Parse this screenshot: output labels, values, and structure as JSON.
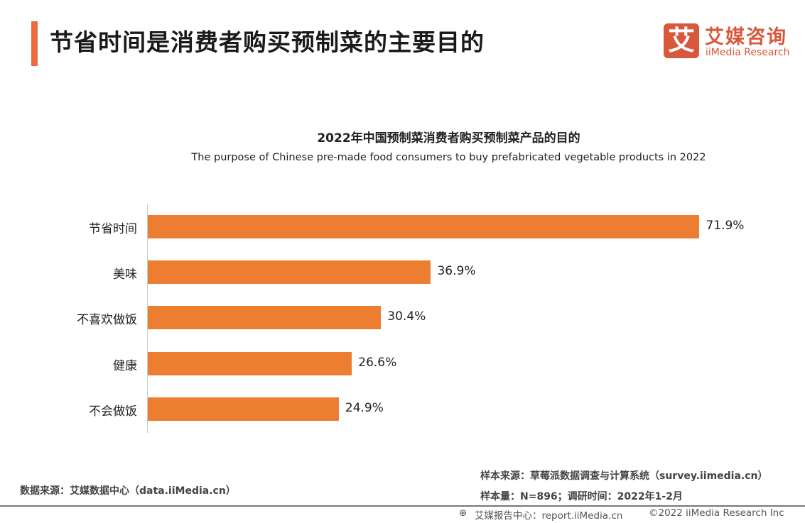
{
  "header": {
    "title": "节省时间是消费者购买预制菜的主要目的"
  },
  "logo": {
    "mark": "艾",
    "name_cn": "艾媒咨询",
    "name_en": "iiMedia Research",
    "color": "#d9573a"
  },
  "chart_data": {
    "type": "bar",
    "orientation": "horizontal",
    "title": "2022年中国预制菜消费者购买预制菜产品的目的",
    "subtitle": "The purpose of Chinese pre-made food consumers to buy prefabricated vegetable products in 2022",
    "categories": [
      "节省时间",
      "美味",
      "不喜欢做饭",
      "健康",
      "不会做饭"
    ],
    "values": [
      71.9,
      36.9,
      30.4,
      26.6,
      24.9
    ],
    "labels": [
      "71.9%",
      "36.9%",
      "30.4%",
      "26.6%",
      "24.9%"
    ],
    "unit": "%",
    "color": "#ed7d31",
    "grid": false,
    "xlim": [
      0,
      72
    ]
  },
  "footer": {
    "data_source": "数据来源：艾媒数据中心（data.iiMedia.cn）",
    "sample_source": "样本来源：草莓派数据调查与计算系统（survey.iimedia.cn）",
    "sample_size": "样本量：N=896；调研时间：2022年1-2月",
    "report_center": "艾媒报告中心：report.iiMedia.cn",
    "copyright": "©2022  iiMedia Research  Inc"
  }
}
